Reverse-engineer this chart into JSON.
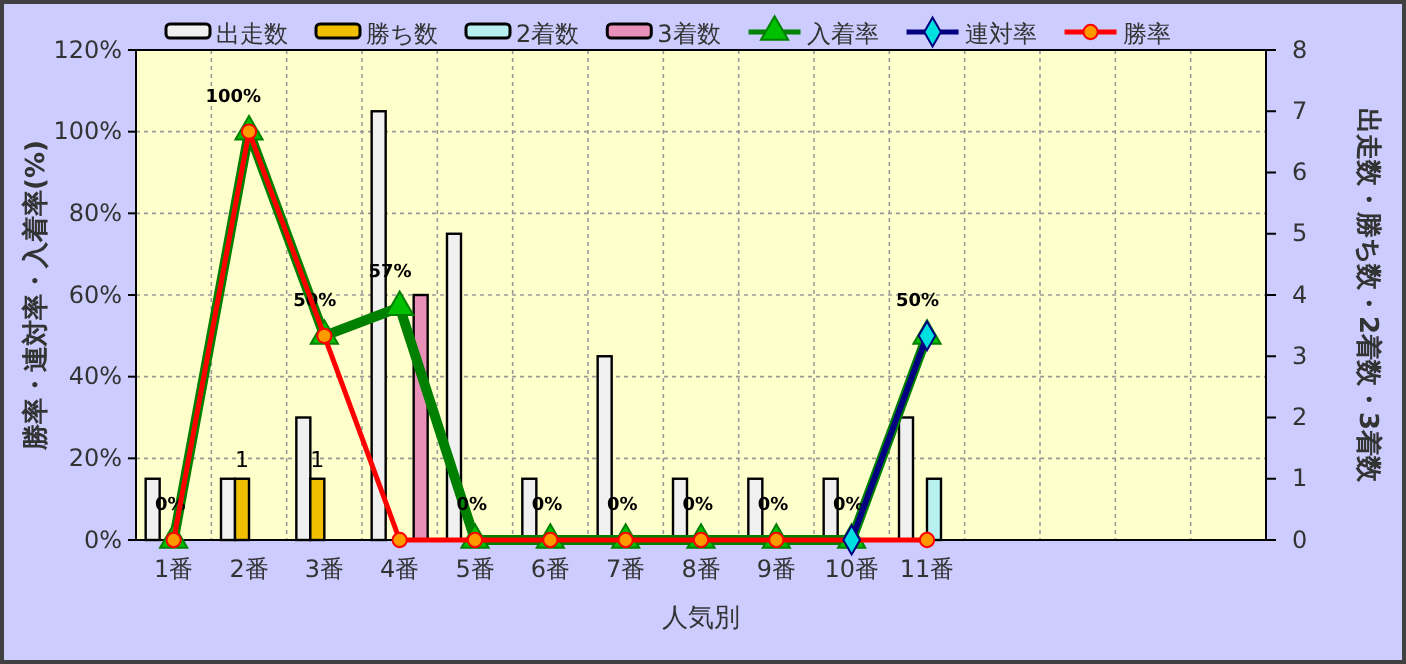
{
  "chart_data": {
    "type": "bar",
    "xlabel": "人気別",
    "ylabel": "勝率・連対率・入着率(%)",
    "y2label": "出走数・勝ち数・2着数・3着数",
    "categories": [
      "1番",
      "2番",
      "3番",
      "4番",
      "5番",
      "6番",
      "7番",
      "8番",
      "9番",
      "10番",
      "11番",
      null,
      null,
      null,
      null
    ],
    "ylim": [
      0,
      120
    ],
    "yticks": [
      {
        "value": 0,
        "label": "0%"
      },
      {
        "value": 20,
        "label": "20%"
      },
      {
        "value": 40,
        "label": "40%"
      },
      {
        "value": 60,
        "label": "60%"
      },
      {
        "value": 80,
        "label": "80%"
      },
      {
        "value": 100,
        "label": "100%"
      },
      {
        "value": 120,
        "label": "120%"
      }
    ],
    "y2lim": [
      0,
      8
    ],
    "y2ticks": [
      0,
      1,
      2,
      3,
      4,
      5,
      6,
      7,
      8
    ],
    "grid": true,
    "legend": "top",
    "series": [
      {
        "name": "出走数",
        "axis": "y2",
        "color": "#f0f0f0",
        "values": [
          1,
          1,
          2,
          7,
          5,
          1,
          3,
          1,
          1,
          1,
          2,
          null,
          null,
          null,
          null
        ]
      },
      {
        "name": "勝ち数",
        "axis": "y2",
        "color": "#f0c000",
        "values": [
          0,
          1,
          1,
          0,
          0,
          0,
          0,
          0,
          0,
          0,
          0,
          null,
          null,
          null,
          null
        ],
        "value_labels": [
          null,
          "1",
          "1",
          null,
          null,
          null,
          null,
          null,
          null,
          null,
          null,
          null,
          null,
          null,
          null
        ]
      },
      {
        "name": "2着数",
        "axis": "y2",
        "color": "#b8f0f0",
        "values": [
          0,
          0,
          0,
          0,
          0,
          0,
          0,
          0,
          0,
          0,
          1,
          null,
          null,
          null,
          null
        ]
      },
      {
        "name": "3着数",
        "axis": "y2",
        "color": "#e890b8",
        "values": [
          0,
          0,
          0,
          4,
          0,
          0,
          0,
          0,
          0,
          0,
          0,
          null,
          null,
          null,
          null
        ]
      },
      {
        "name": "入着率",
        "type": "line",
        "color": "#008000",
        "marker": "triangle",
        "values": [
          0,
          100,
          50,
          57,
          0,
          0,
          0,
          0,
          0,
          0,
          50,
          null,
          null,
          null,
          null
        ],
        "value_labels": [
          "0%",
          "100%",
          "50%",
          "57%",
          "0%",
          "0%",
          "0%",
          "0%",
          "0%",
          "0%",
          "50%",
          null,
          null,
          null,
          null
        ]
      },
      {
        "name": "連対率",
        "type": "line",
        "color": "#000080",
        "marker": "diamond",
        "values": [
          null,
          null,
          null,
          null,
          null,
          null,
          null,
          null,
          null,
          0,
          50,
          null,
          null,
          null,
          null
        ]
      },
      {
        "name": "勝率",
        "type": "line",
        "color": "#ff0000",
        "marker": "circle",
        "values": [
          0,
          100,
          50,
          0,
          0,
          0,
          0,
          0,
          0,
          0,
          0,
          null,
          null,
          null,
          null
        ]
      }
    ]
  }
}
